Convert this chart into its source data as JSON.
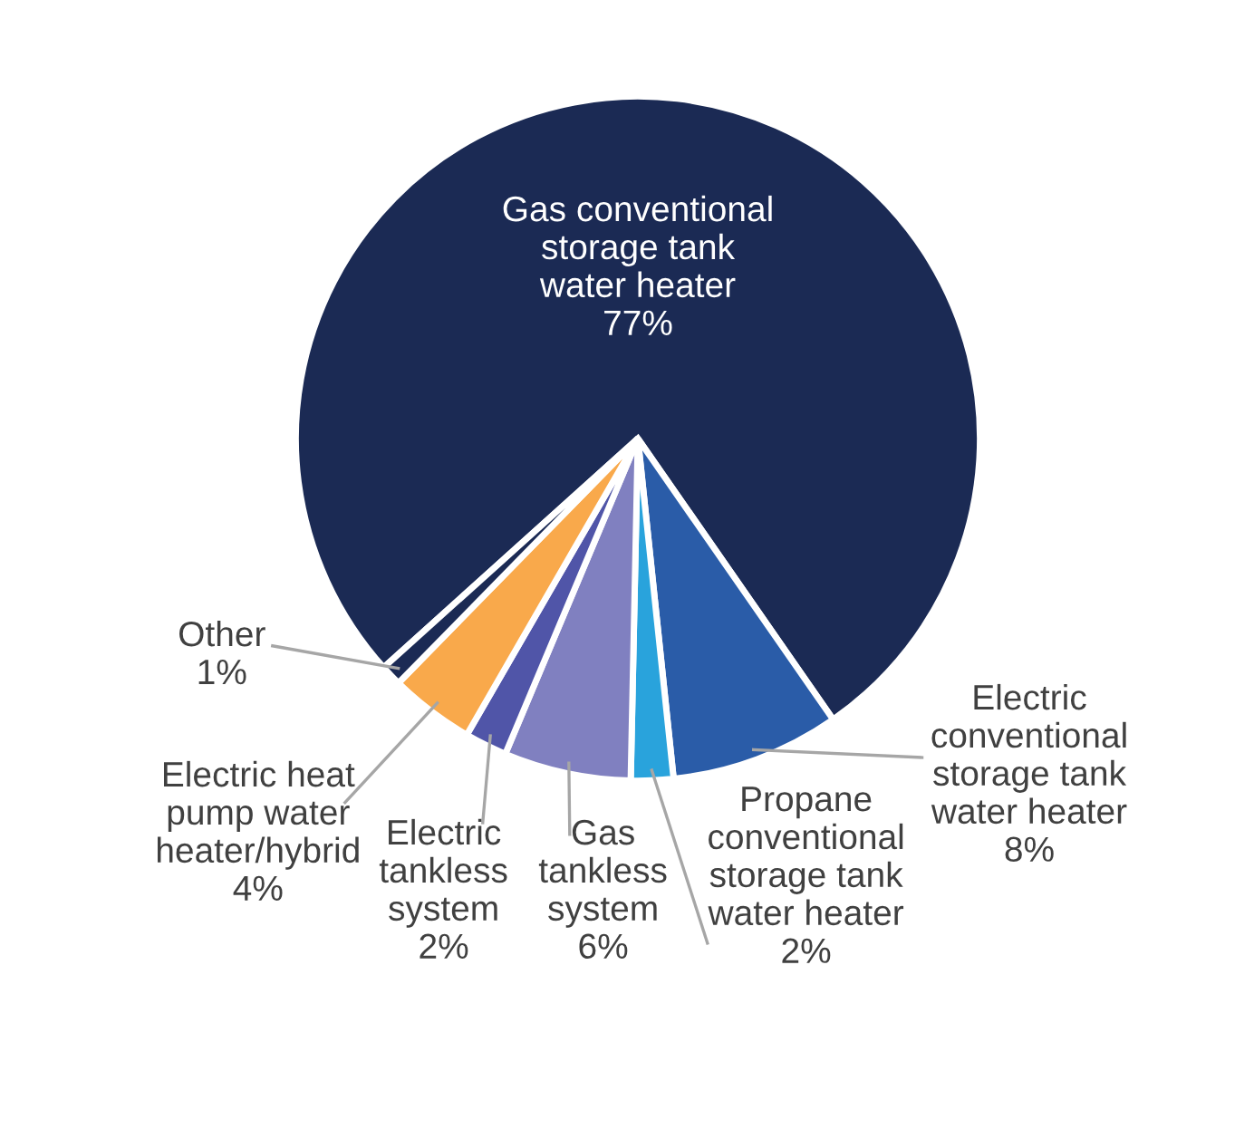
{
  "chart_data": {
    "type": "pie",
    "categories": [
      "Gas conventional storage tank water heater",
      "Electric conventional storage tank water heater",
      "Propane conventional storage tank water heater",
      "Gas tankless system",
      "Electric tankless system",
      "Electric heat pump water heater/hybrid",
      "Other"
    ],
    "values": [
      77,
      8,
      2,
      6,
      2,
      4,
      1
    ],
    "value_labels": [
      "77%",
      "8%",
      "2%",
      "6%",
      "2%",
      "4%",
      "1%"
    ],
    "colors": [
      "#1b2a54",
      "#2a5ca8",
      "#29a3dc",
      "#8080c0",
      "#5055a8",
      "#f9a94b",
      "#1b2a54"
    ],
    "legend": false
  }
}
